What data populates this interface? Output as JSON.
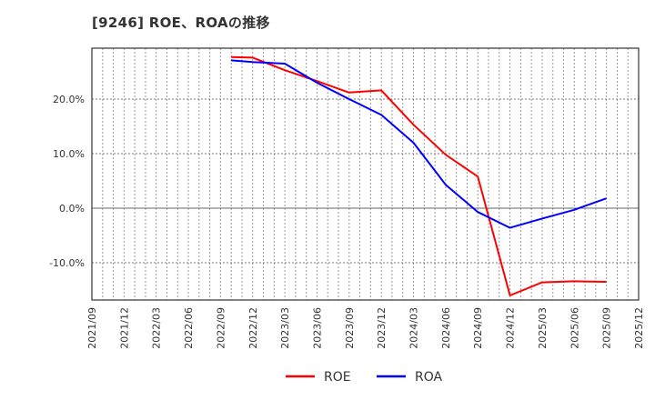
{
  "title": "[9246]  ROE、ROAの推移",
  "chart_data": {
    "type": "line",
    "title": "[9246]  ROE、ROAの推移",
    "xlabel": "",
    "ylabel": "",
    "x_ticks": [
      "2021/09",
      "2021/12",
      "2022/03",
      "2022/06",
      "2022/09",
      "2022/12",
      "2023/03",
      "2023/06",
      "2023/09",
      "2023/12",
      "2024/03",
      "2024/06",
      "2024/09",
      "2024/12",
      "2025/03",
      "2025/06",
      "2025/09",
      "2025/12"
    ],
    "y_ticks": [
      -10,
      0,
      10,
      20
    ],
    "y_tick_labels": [
      "-10.0%",
      "0.0%",
      "10.0%",
      "20.0%"
    ],
    "ylim": [
      -17,
      29.3
    ],
    "grid": true,
    "legend_position": "bottom",
    "x": [
      "2022/10",
      "2022/12",
      "2023/03",
      "2023/06",
      "2023/09",
      "2023/12",
      "2024/03",
      "2024/06",
      "2024/09",
      "2024/12",
      "2025/03",
      "2025/06",
      "2025/09"
    ],
    "x_index": [
      4.33,
      5,
      6,
      7,
      8,
      9,
      10,
      11,
      12,
      13,
      14,
      15,
      16
    ],
    "series": [
      {
        "name": "ROE",
        "color": "#ff0000",
        "values": [
          27.7,
          27.6,
          25.3,
          23.3,
          21.2,
          21.6,
          15.3,
          9.8,
          5.8,
          -16.0,
          -13.6,
          -13.4,
          -13.5
        ]
      },
      {
        "name": "ROA",
        "color": "#0000ff",
        "values": [
          27.1,
          26.8,
          26.5,
          23.0,
          20.0,
          17.1,
          12.0,
          4.3,
          -0.7,
          -3.6,
          -1.9,
          -0.3,
          1.8
        ]
      }
    ]
  }
}
